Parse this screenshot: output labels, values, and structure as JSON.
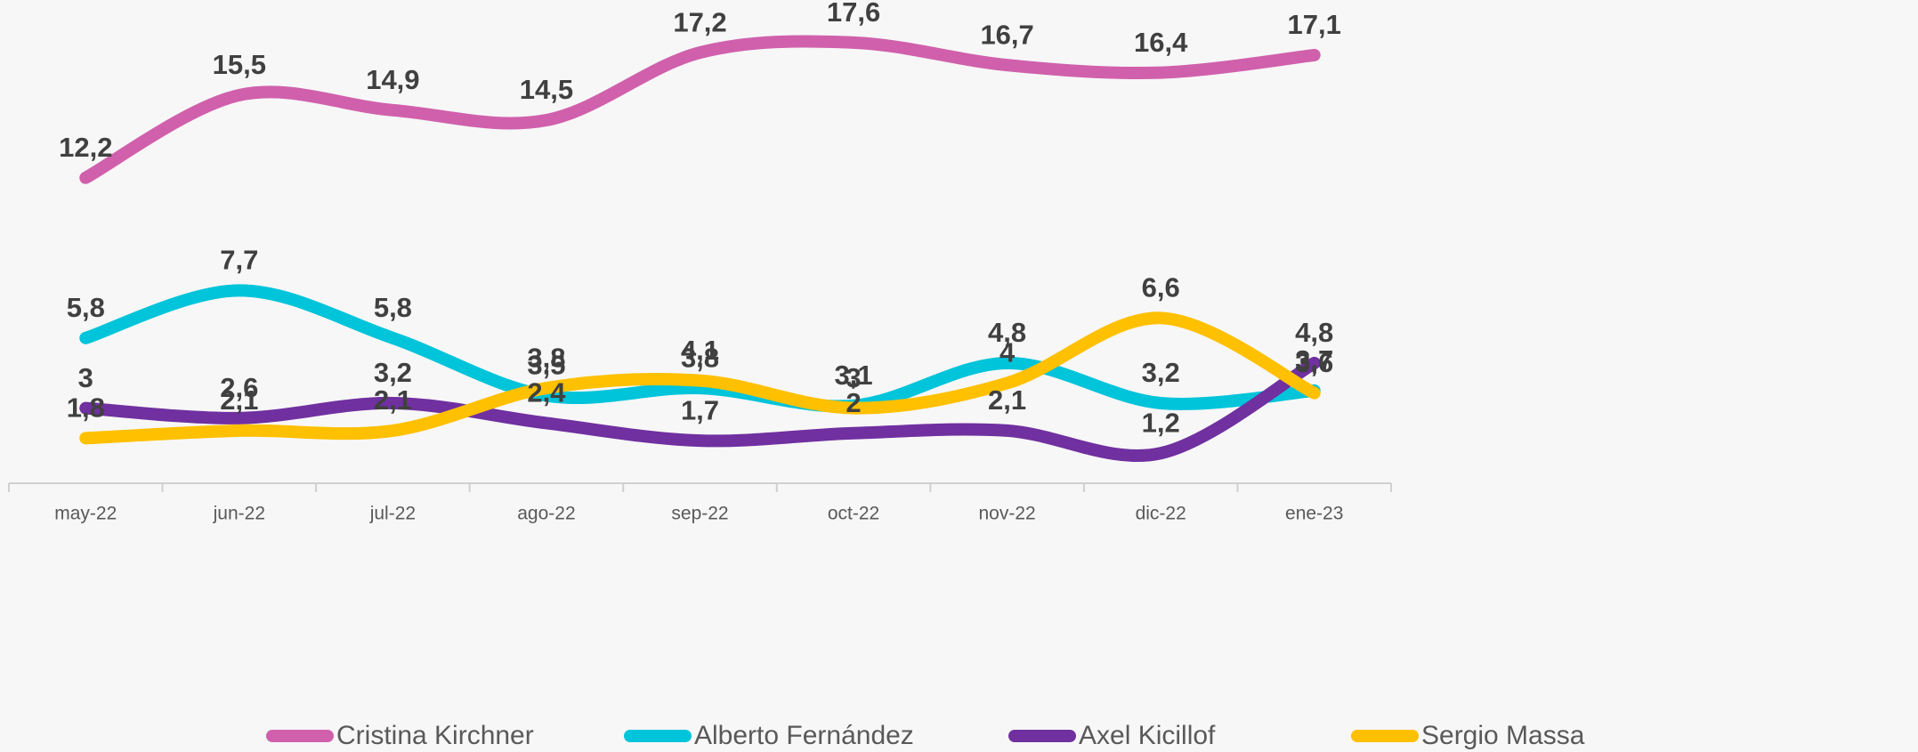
{
  "chart_data": {
    "type": "line",
    "categories": [
      "may-22",
      "jun-22",
      "jul-22",
      "ago-22",
      "sep-22",
      "oct-22",
      "nov-22",
      "dic-22",
      "ene-23"
    ],
    "series": [
      {
        "name": "Cristina Kirchner",
        "color": "#d060ac",
        "values": [
          12.2,
          15.5,
          14.9,
          14.5,
          17.2,
          17.6,
          16.7,
          16.4,
          17.1
        ],
        "value_labels": [
          "12,2",
          "15,5",
          "14,9",
          "14,5",
          "17,2",
          "17,6",
          "16,7",
          "16,4",
          "17,1"
        ]
      },
      {
        "name": "Alberto Fernández",
        "color": "#00c4da",
        "values": [
          5.8,
          7.7,
          5.8,
          3.5,
          3.8,
          3.1,
          4.8,
          3.2,
          3.7
        ],
        "value_labels": [
          "5,8",
          "7,7",
          "5,8",
          "3,5",
          "3,8",
          "3,1",
          "4,8",
          "3,2",
          "3,7"
        ]
      },
      {
        "name": "Axel Kicillof",
        "color": "#7030a0",
        "values": [
          3,
          2.6,
          3.2,
          2.4,
          1.7,
          2,
          2.1,
          1.2,
          4.8
        ],
        "value_labels": [
          "3",
          "2,6",
          "3,2",
          "2,4",
          "1,7",
          "2",
          "2,1",
          "1,2",
          "4,8"
        ]
      },
      {
        "name": "Sergio Massa",
        "color": "#ffc000",
        "values": [
          1.8,
          2.1,
          2.1,
          3.8,
          4.1,
          3,
          4,
          6.6,
          3.6
        ],
        "value_labels": [
          "1,8",
          "2,1",
          "2,1",
          "3,8",
          "4,1",
          "3",
          "4",
          "6,6",
          "3,6"
        ]
      }
    ],
    "ylim": [
      0,
      19.3
    ],
    "smooth": true
  }
}
